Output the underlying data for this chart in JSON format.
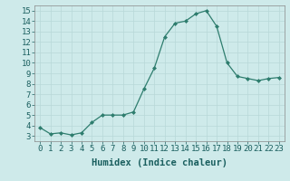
{
  "x": [
    0,
    1,
    2,
    3,
    4,
    5,
    6,
    7,
    8,
    9,
    10,
    11,
    12,
    13,
    14,
    15,
    16,
    17,
    18,
    19,
    20,
    21,
    22,
    23
  ],
  "y": [
    3.8,
    3.2,
    3.3,
    3.1,
    3.3,
    4.3,
    5.0,
    5.0,
    5.0,
    5.3,
    7.5,
    9.5,
    12.5,
    13.8,
    14.0,
    14.7,
    15.0,
    13.5,
    10.0,
    8.7,
    8.5,
    8.3,
    8.5,
    8.6
  ],
  "line_color": "#2e7d6e",
  "marker": "D",
  "marker_size": 2.0,
  "bg_color": "#ceeaea",
  "grid_color": "#b8d8d8",
  "xlabel": "Humidex (Indice chaleur)",
  "xlim": [
    -0.5,
    23.5
  ],
  "ylim": [
    2.5,
    15.5
  ],
  "yticks": [
    3,
    4,
    5,
    6,
    7,
    8,
    9,
    10,
    11,
    12,
    13,
    14,
    15
  ],
  "xticks": [
    0,
    1,
    2,
    3,
    4,
    5,
    6,
    7,
    8,
    9,
    10,
    11,
    12,
    13,
    14,
    15,
    16,
    17,
    18,
    19,
    20,
    21,
    22,
    23
  ],
  "tick_label_fontsize": 6.5,
  "xlabel_fontsize": 7.5,
  "label_color": "#1a5f5f",
  "spine_color": "#888888",
  "linewidth": 0.9
}
